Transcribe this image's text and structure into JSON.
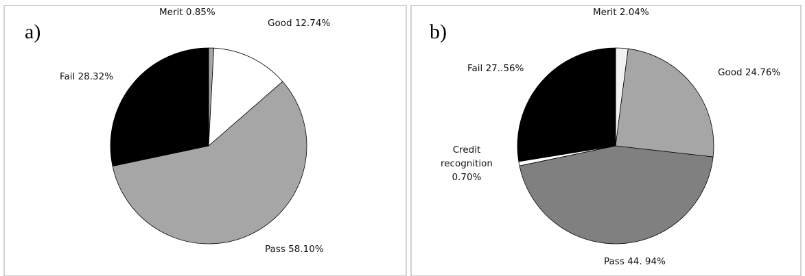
{
  "chart_data": [
    {
      "type": "pie",
      "panel_label": "a)",
      "slices": [
        {
          "name": "Merit",
          "value": 0.85,
          "label": "Merit 0.85%",
          "color": "#a6a6a6"
        },
        {
          "name": "Good",
          "value": 12.74,
          "label": "Good 12.74%",
          "color": "#ffffff"
        },
        {
          "name": "Pass",
          "value": 58.1,
          "label": "Pass  58.10%",
          "color": "#a6a6a6"
        },
        {
          "name": "Fail",
          "value": 28.32,
          "label": "Fail 28.32%",
          "color": "#000000"
        }
      ]
    },
    {
      "type": "pie",
      "panel_label": "b)",
      "slices": [
        {
          "name": "Merit",
          "value": 2.04,
          "label": "Merit 2.04%",
          "color": "#f2f2f2"
        },
        {
          "name": "Good",
          "value": 24.76,
          "label": "Good 24.76%",
          "color": "#a6a6a6"
        },
        {
          "name": "Pass",
          "value": 44.94,
          "label": "Pass 44. 94%",
          "color": "#808080"
        },
        {
          "name": "Credit recognition",
          "value": 0.7,
          "label_lines": [
            "Credit",
            "recognition",
            "0.70%"
          ],
          "color": "#ffffff"
        },
        {
          "name": "Fail",
          "value": 27.56,
          "label": "Fail 27..56%",
          "color": "#000000"
        }
      ]
    }
  ]
}
